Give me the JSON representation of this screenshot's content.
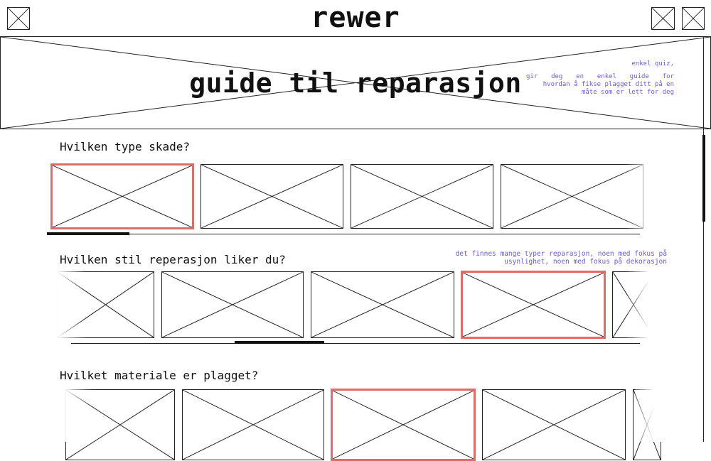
{
  "header": {
    "logo": "rewer",
    "menu_icon": "placeholder-icon",
    "right_icons": [
      "placeholder-icon",
      "placeholder-icon"
    ]
  },
  "hero": {
    "title": "guide til reparasjon",
    "note_line1": "enkel quiz,",
    "note_line2": "gir deg en enkel guide for",
    "note_line3": "hvordan å fikse plagget ditt på en",
    "note_line4": "måte som er lett for deg"
  },
  "sections": [
    {
      "question": "Hvilken type skade?",
      "selected_index": 0,
      "option_count": 4
    },
    {
      "question": "Hvilken stil reperasjon liker du?",
      "note_line1": "det finnes mange typer reparasjon, noen med fokus på",
      "note_line2": "usynlighet, noen med fokus på dekorasjon",
      "selected_index": 3,
      "option_count": 5
    },
    {
      "question": "Hvilket materiale er plagget?",
      "selected_index": 2,
      "option_count": 5
    }
  ],
  "colors": {
    "accent": "#e06b6b",
    "note": "#6b5bd6",
    "line": "#222222"
  }
}
